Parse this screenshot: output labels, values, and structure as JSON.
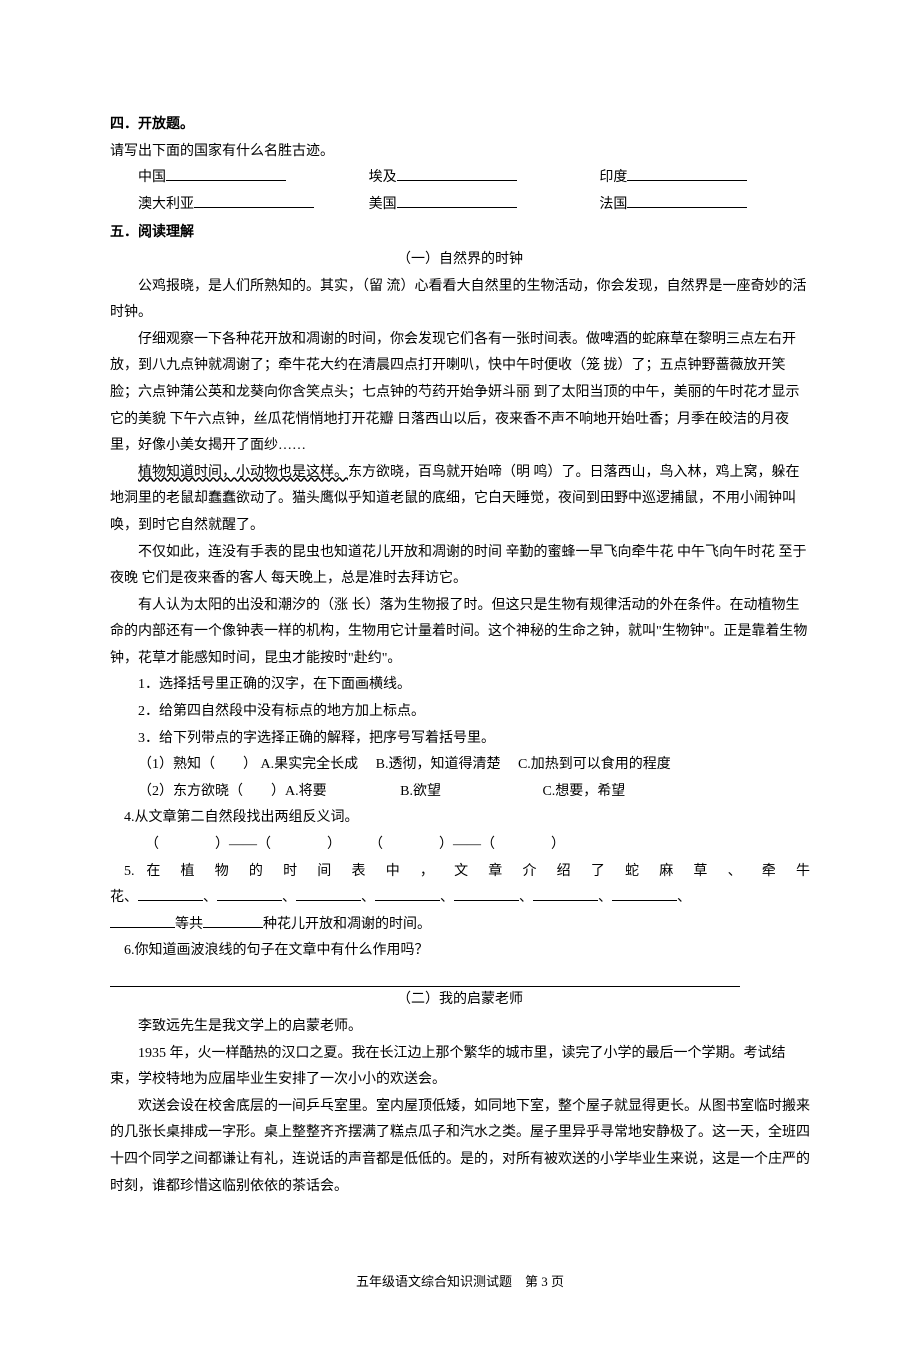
{
  "section4": {
    "heading": "四．开放题。",
    "intro": "请写出下面的国家有什么名胜古迹。",
    "row1": {
      "c1": "中国",
      "c2": "埃及",
      "c3": "印度"
    },
    "row2": {
      "c1": "澳大利亚",
      "c2": "美国",
      "c3": "法国"
    }
  },
  "section5": {
    "heading": "五．阅读理解",
    "passage1": {
      "title": "（一）自然界的时钟",
      "p1": "公鸡报晓，是人们所熟知的。其实，（留  流）心看看大自然里的生物活动，你会发现，自然界是一座奇妙的活时钟。",
      "p2": "仔细观察一下各种花开放和凋谢的时间，你会发现它们各有一张时间表。做啤酒的蛇麻草在黎明三点左右开放，到八九点钟就凋谢了；牵牛花大约在清晨四点打开喇叭，快中午时便收（笼  拢）了；五点钟野蔷薇放开笑脸；六点钟蒲公英和龙葵向你含笑点头；七点钟的芍药开始争妍斗丽  到了太阳当顶的中午，美丽的午时花才显示它的美貌  下午六点钟，丝瓜花悄悄地打开花瓣  日落西山以后，夜来香不声不响地开始吐香；月季在皎洁的月夜里，好像小美女揭开了面纱……",
      "p3a": "植物知道时间，小动物也是这样。",
      "p3b": "东方欲晓，百鸟就开始啼（明  鸣）了。日落西山，鸟入林，鸡上窝，躲在地洞里的老鼠却蠢蠢欲动了。猫头鹰似乎知道老鼠的底细，它白天睡觉，夜间到田野中巡逻捕鼠，不用小闹钟叫唤，到时它自然就醒了。",
      "p4": "不仅如此，连没有手表的昆虫也知道花儿开放和凋谢的时间  辛勤的蜜蜂一早飞向牵牛花  中午飞向午时花  至于夜晚  它们是夜来香的客人  每天晚上，总是准时去拜访它。",
      "p5": "有人认为太阳的出没和潮汐的（涨  长）落为生物报了时。但这只是生物有规律活动的外在条件。在动植物生命的内部还有一个像钟表一样的机构，生物用它计量着时间。这个神秘的生命之钟，就叫\"生物钟\"。正是靠着生物钟，花草才能感知时间，昆虫才能按时\"赴约\"。",
      "q1": "1．选择括号里正确的汉字，在下面画横线。",
      "q2": "2．给第四自然段中没有标点的地方加上标点。",
      "q3": "3．给下列带点的字选择正确的解释，把序号写着括号里。",
      "q3a": "（1）熟知（　　）  A.果实完全长成　 B.透彻，知道得清楚　 C.加热到可以食用的程度",
      "q3b": "（2）东方欲晓（　　）A.将要　　　　　 B.欲望　　　　　　　 C.想要，希望",
      "q4": "4.从文章第二自然段找出两组反义词。",
      "q4row": "（　　　　）——（　　　　）　　　（　　　　）——（　　　　）",
      "q5a": "5. 在 植 物 的 时 间 表 中 ， 文 章 介 绍 了 蛇 麻 草 、 牵 牛",
      "q5b_prefix": "花、",
      "q5c_prefix": "",
      "q5c_mid": "等共",
      "q5c_suffix": "种花儿开放和凋谢的时间。",
      "q6": "6.你知道画波浪线的句子在文章中有什么作用吗？"
    },
    "passage2": {
      "title": "（二）我的启蒙老师",
      "p1": "李致远先生是我文学上的启蒙老师。",
      "p2": "1935 年，火一样酷热的汉口之夏。我在长江边上那个繁华的城市里，读完了小学的最后一个学期。考试结束，学校特地为应届毕业生安排了一次小小的欢送会。",
      "p3": "欢送会设在校舍底层的一间乒乓室里。室内屋顶低矮，如同地下室，整个屋子就显得更长。从图书室临时搬来的几张长桌排成一字形。桌上整整齐齐摆满了糕点瓜子和汽水之类。屋子里异乎寻常地安静极了。这一天，全班四十四个同学之间都谦让有礼，连说话的声音都是低低的。是的，对所有被欢送的小学毕业生来说，这是一个庄严的时刻，谁都珍惜这临别依依的茶话会。"
    }
  },
  "footer": "五年级语文综合知识测试题　第 3 页"
}
